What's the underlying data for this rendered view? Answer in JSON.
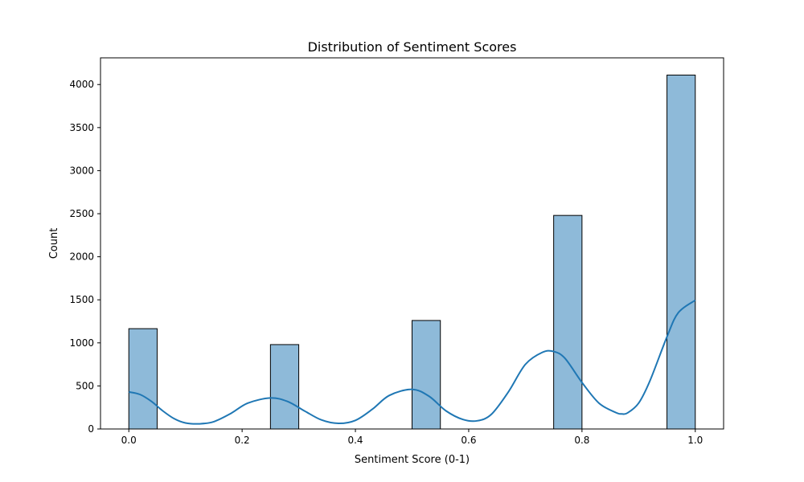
{
  "chart_data": {
    "type": "bar",
    "title": "Distribution of Sentiment Scores",
    "xlabel": "Sentiment Score (0-1)",
    "ylabel": "Count",
    "xlim": [
      -0.05,
      1.05
    ],
    "ylim": [
      0,
      4310
    ],
    "x_ticks": [
      0.0,
      0.2,
      0.4,
      0.6,
      0.8,
      1.0
    ],
    "x_tick_labels": [
      "0.0",
      "0.2",
      "0.4",
      "0.6",
      "0.8",
      "1.0"
    ],
    "y_ticks": [
      0,
      500,
      1000,
      1500,
      2000,
      2500,
      3000,
      3500,
      4000
    ],
    "y_tick_labels": [
      "0",
      "500",
      "1000",
      "1500",
      "2000",
      "2500",
      "3000",
      "3500",
      "4000"
    ],
    "grid": false,
    "bins": [
      {
        "start": 0.0,
        "end": 0.05,
        "count": 1165
      },
      {
        "start": 0.25,
        "end": 0.3,
        "count": 980
      },
      {
        "start": 0.5,
        "end": 0.55,
        "count": 1260
      },
      {
        "start": 0.75,
        "end": 0.8,
        "count": 2480
      },
      {
        "start": 0.95,
        "end": 1.0,
        "count": 4110
      }
    ],
    "kde": {
      "x": [
        0.0,
        0.02,
        0.04,
        0.06,
        0.08,
        0.1,
        0.125,
        0.15,
        0.18,
        0.21,
        0.25,
        0.28,
        0.31,
        0.34,
        0.37,
        0.4,
        0.43,
        0.46,
        0.5,
        0.53,
        0.56,
        0.59,
        0.615,
        0.64,
        0.67,
        0.7,
        0.73,
        0.75,
        0.77,
        0.8,
        0.83,
        0.86,
        0.87,
        0.88,
        0.9,
        0.92,
        0.95,
        0.97,
        1.0
      ],
      "y": [
        430,
        400,
        320,
        210,
        120,
        70,
        60,
        85,
        180,
        300,
        360,
        320,
        210,
        105,
        65,
        100,
        230,
        390,
        460,
        380,
        210,
        110,
        95,
        170,
        430,
        750,
        890,
        900,
        820,
        540,
        300,
        190,
        175,
        185,
        300,
        560,
        1070,
        1350,
        1495
      ]
    },
    "bar_color": "#8ebad9",
    "line_color": "#1f77b4"
  }
}
